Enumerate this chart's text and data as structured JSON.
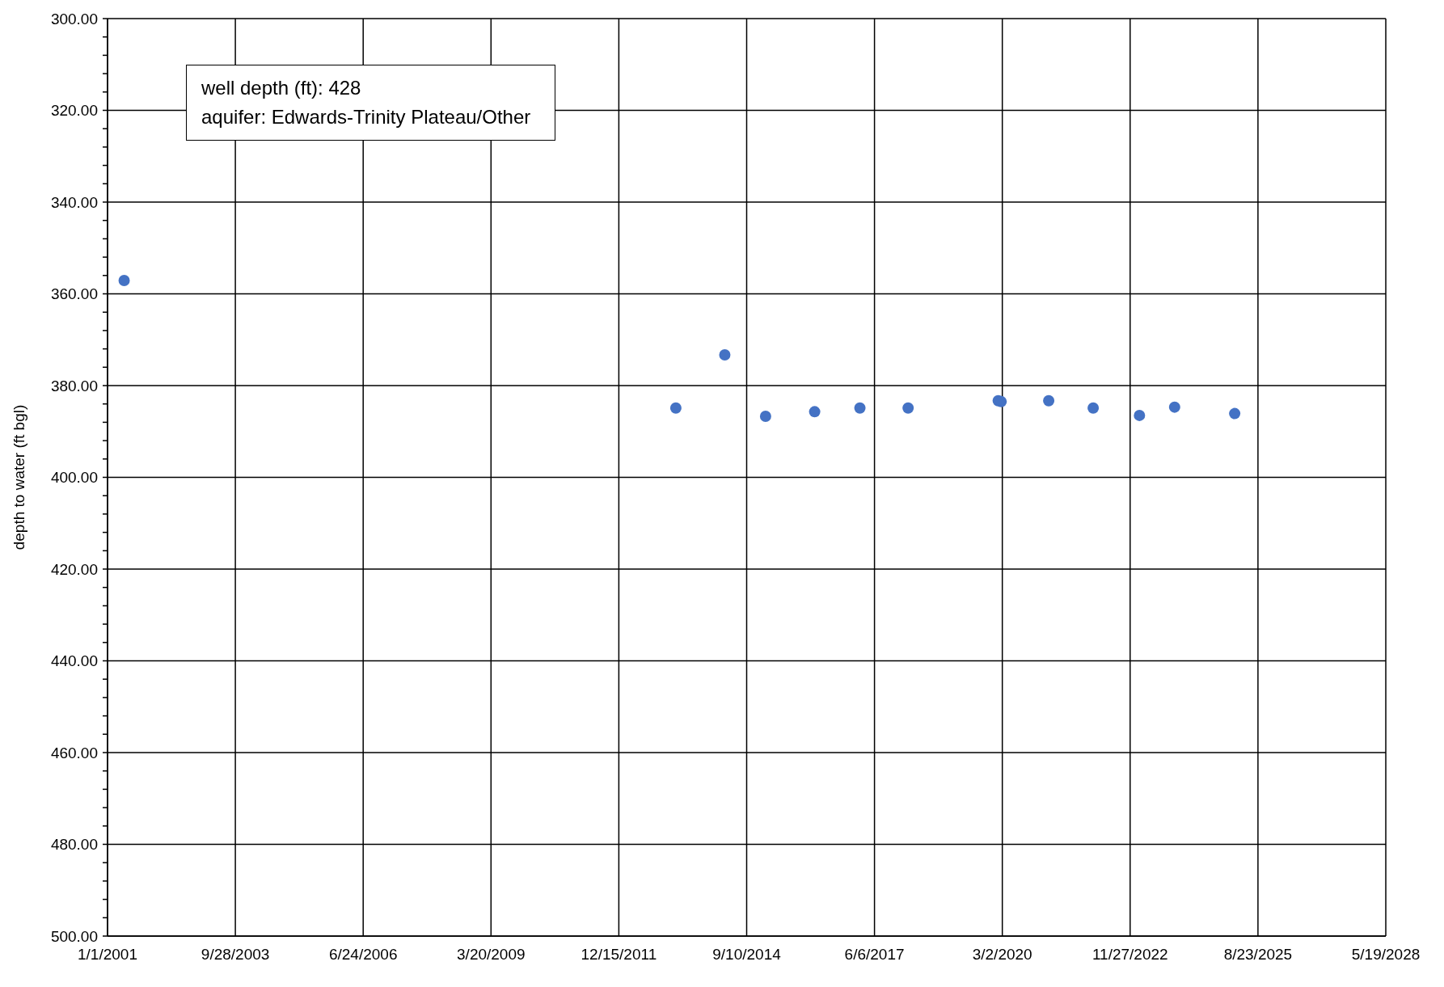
{
  "chart_data": {
    "type": "scatter",
    "ylabel": "depth to water (ft bgl)",
    "annotations": [
      "well depth (ft): 428",
      "aquifer: Edwards-Trinity Plateau/Other"
    ],
    "x": [
      "2001-05-11",
      "2013-03-05",
      "2014-03-23",
      "2015-02-05",
      "2016-02-24",
      "2017-02-12",
      "2018-02-24",
      "2020-01-30",
      "2020-02-22",
      "2021-02-28",
      "2022-02-11",
      "2023-02-08",
      "2023-11-10",
      "2025-02-22"
    ],
    "series": [
      {
        "color": "#4472c4",
        "values": [
          357.1,
          384.9,
          373.3,
          386.7,
          385.7,
          384.9,
          384.9,
          383.3,
          383.5,
          383.3,
          384.9,
          386.5,
          384.7,
          386.1
        ]
      }
    ],
    "xlim": [
      "2001-01-01",
      "2028-05-19"
    ],
    "xticks": [
      {
        "value": "2001-01-01",
        "label": "1/1/2001"
      },
      {
        "value": "2003-09-28",
        "label": "9/28/2003"
      },
      {
        "value": "2006-06-24",
        "label": "6/24/2006"
      },
      {
        "value": "2009-03-20",
        "label": "3/20/2009"
      },
      {
        "value": "2011-12-15",
        "label": "12/15/2011"
      },
      {
        "value": "2014-09-10",
        "label": "9/10/2014"
      },
      {
        "value": "2017-06-06",
        "label": "6/6/2017"
      },
      {
        "value": "2020-03-02",
        "label": "3/2/2020"
      },
      {
        "value": "2022-11-27",
        "label": "11/27/2022"
      },
      {
        "value": "2025-08-23",
        "label": "8/23/2025"
      },
      {
        "value": "2028-05-19",
        "label": "5/19/2028"
      }
    ],
    "ylim": [
      500,
      300
    ],
    "yticks": [
      {
        "value": 300,
        "label": "300.00"
      },
      {
        "value": 304,
        "label": null
      },
      {
        "value": 308,
        "label": null
      },
      {
        "value": 312,
        "label": null
      },
      {
        "value": 316,
        "label": null
      },
      {
        "value": 320,
        "label": "320.00"
      },
      {
        "value": 324,
        "label": null
      },
      {
        "value": 328,
        "label": null
      },
      {
        "value": 332,
        "label": null
      },
      {
        "value": 336,
        "label": null
      },
      {
        "value": 340,
        "label": "340.00"
      },
      {
        "value": 344,
        "label": null
      },
      {
        "value": 348,
        "label": null
      },
      {
        "value": 352,
        "label": null
      },
      {
        "value": 356,
        "label": null
      },
      {
        "value": 360,
        "label": "360.00"
      },
      {
        "value": 364,
        "label": null
      },
      {
        "value": 368,
        "label": null
      },
      {
        "value": 372,
        "label": null
      },
      {
        "value": 376,
        "label": null
      },
      {
        "value": 380,
        "label": "380.00"
      },
      {
        "value": 384,
        "label": null
      },
      {
        "value": 388,
        "label": null
      },
      {
        "value": 392,
        "label": null
      },
      {
        "value": 396,
        "label": null
      },
      {
        "value": 400,
        "label": "400.00"
      },
      {
        "value": 404,
        "label": null
      },
      {
        "value": 408,
        "label": null
      },
      {
        "value": 412,
        "label": null
      },
      {
        "value": 416,
        "label": null
      },
      {
        "value": 420,
        "label": "420.00"
      },
      {
        "value": 424,
        "label": null
      },
      {
        "value": 428,
        "label": null
      },
      {
        "value": 432,
        "label": null
      },
      {
        "value": 436,
        "label": null
      },
      {
        "value": 440,
        "label": "440.00"
      },
      {
        "value": 444,
        "label": null
      },
      {
        "value": 448,
        "label": null
      },
      {
        "value": 452,
        "label": null
      },
      {
        "value": 456,
        "label": null
      },
      {
        "value": 460,
        "label": "460.00"
      },
      {
        "value": 464,
        "label": null
      },
      {
        "value": 468,
        "label": null
      },
      {
        "value": 472,
        "label": null
      },
      {
        "value": 476,
        "label": null
      },
      {
        "value": 480,
        "label": "480.00"
      },
      {
        "value": 484,
        "label": null
      },
      {
        "value": 488,
        "label": null
      },
      {
        "value": 492,
        "label": null
      },
      {
        "value": 496,
        "label": null
      },
      {
        "value": 500,
        "label": "500.00"
      }
    ],
    "grid": true,
    "legend": false,
    "marker": "circle"
  }
}
